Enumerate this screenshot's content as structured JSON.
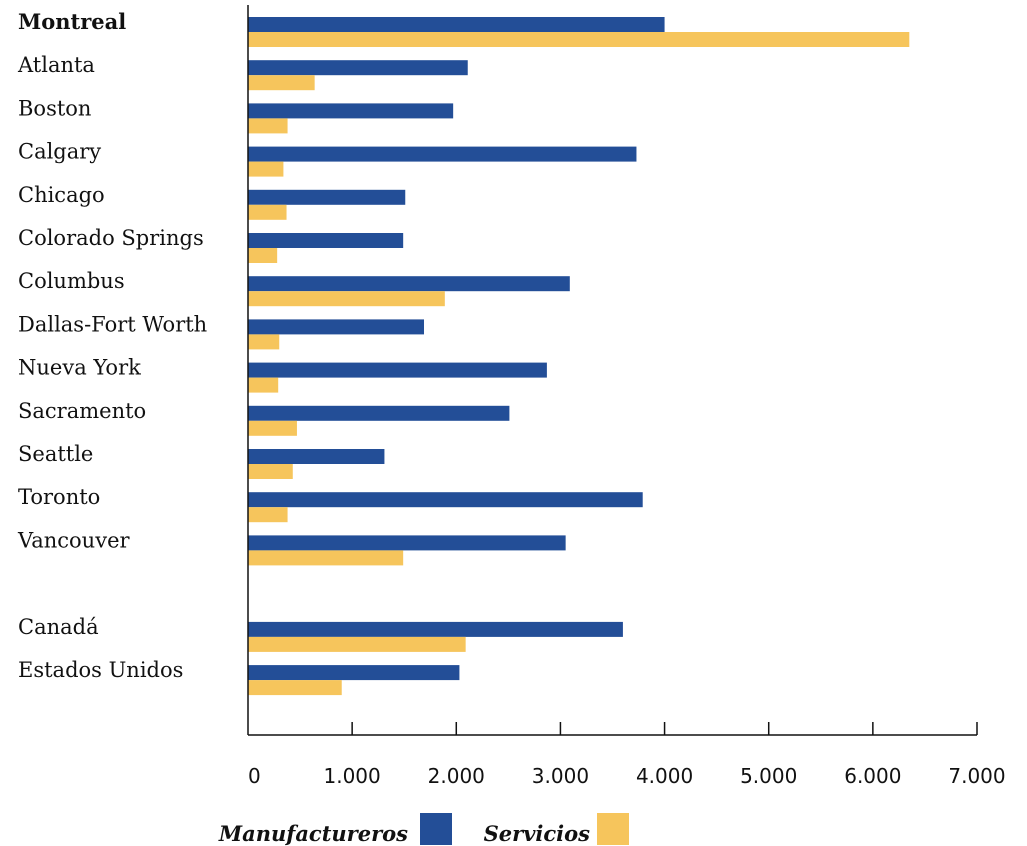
{
  "chart_data": {
    "type": "bar",
    "orientation": "horizontal",
    "categories": [
      "Montreal",
      "Atlanta",
      "Boston",
      "Calgary",
      "Chicago",
      "Colorado Springs",
      "Columbus",
      "Dallas-Fort Worth",
      "Nueva York",
      "Sacramento",
      "Seattle",
      "Toronto",
      "Vancouver",
      "Canadá",
      "Estados Unidos"
    ],
    "highlighted_category": "Montreal",
    "group_break_before": "Canadá",
    "series": [
      {
        "name": "Manufactureros",
        "color": "#234e97",
        "values": [
          4000,
          2110,
          1970,
          3730,
          1510,
          1490,
          3090,
          1690,
          2870,
          2510,
          1310,
          3790,
          3050,
          3600,
          2030
        ]
      },
      {
        "name": "Servicios",
        "color": "#f6c55c",
        "values": [
          6350,
          640,
          380,
          340,
          370,
          280,
          1890,
          300,
          290,
          470,
          430,
          380,
          1490,
          2090,
          900
        ]
      }
    ],
    "xlim": [
      0,
      7000
    ],
    "xticks": [
      0,
      1000,
      2000,
      3000,
      4000,
      5000,
      6000,
      7000
    ],
    "xtick_labels": [
      "0",
      "1.000",
      "2.000",
      "3.000",
      "4.000",
      "5.000",
      "6.000",
      "7.000"
    ],
    "title": "",
    "xlabel": "",
    "ylabel": "",
    "grid": false,
    "legend_position": "bottom"
  }
}
